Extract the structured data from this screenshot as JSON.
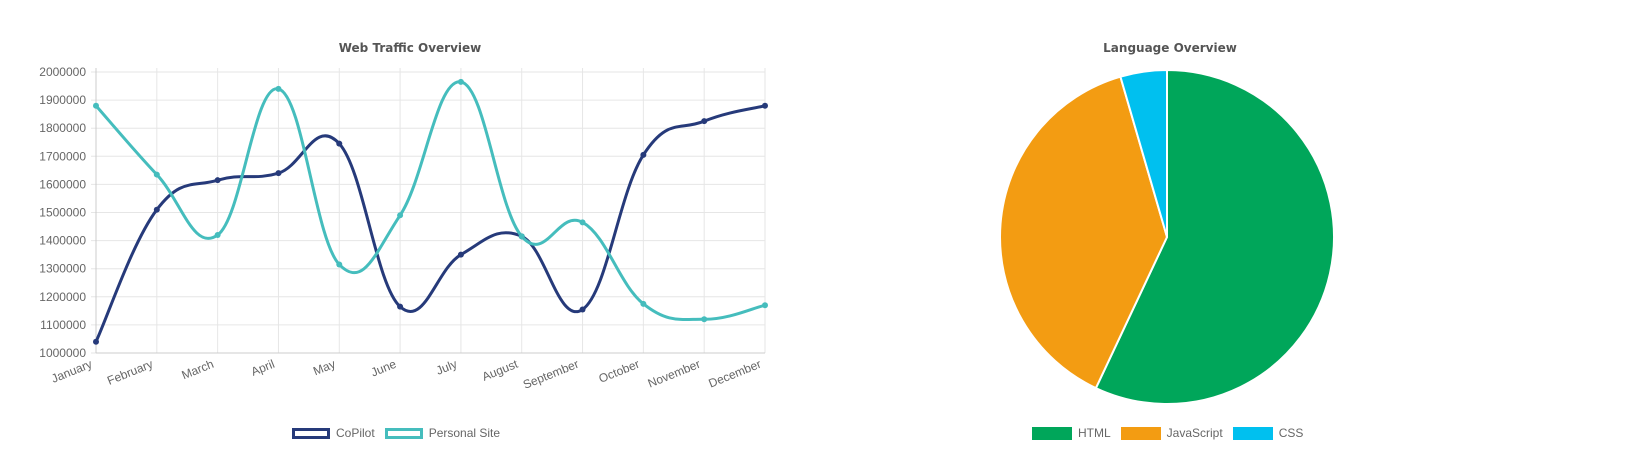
{
  "chart_data": [
    {
      "type": "line",
      "title": "Web Traffic Overview",
      "xlabel": "",
      "ylabel": "",
      "categories": [
        "January",
        "February",
        "March",
        "April",
        "May",
        "June",
        "July",
        "August",
        "September",
        "October",
        "November",
        "December"
      ],
      "series": [
        {
          "name": "CoPilot",
          "color": "#263a7a",
          "values": [
            1040000,
            1510000,
            1615000,
            1640000,
            1745000,
            1165000,
            1350000,
            1415000,
            1155000,
            1705000,
            1825000,
            1880000
          ]
        },
        {
          "name": "Personal Site",
          "color": "#45bdbd",
          "values": [
            1880000,
            1635000,
            1420000,
            1940000,
            1315000,
            1490000,
            1965000,
            1415000,
            1465000,
            1175000,
            1120000,
            1170000
          ]
        }
      ],
      "ylim": [
        1000000,
        2000000
      ],
      "yticks": [
        1000000,
        1100000,
        1200000,
        1300000,
        1400000,
        1500000,
        1600000,
        1700000,
        1800000,
        1900000,
        2000000
      ],
      "grid": true,
      "legend_position": "bottom"
    },
    {
      "type": "pie",
      "title": "Language Overview",
      "slices": [
        {
          "label": "HTML",
          "value": 57,
          "color": "#00a65a"
        },
        {
          "label": "JavaScript",
          "value": 38.5,
          "color": "#f39c12"
        },
        {
          "label": "CSS",
          "value": 4.5,
          "color": "#00c0ef"
        }
      ],
      "legend_position": "bottom"
    }
  ]
}
